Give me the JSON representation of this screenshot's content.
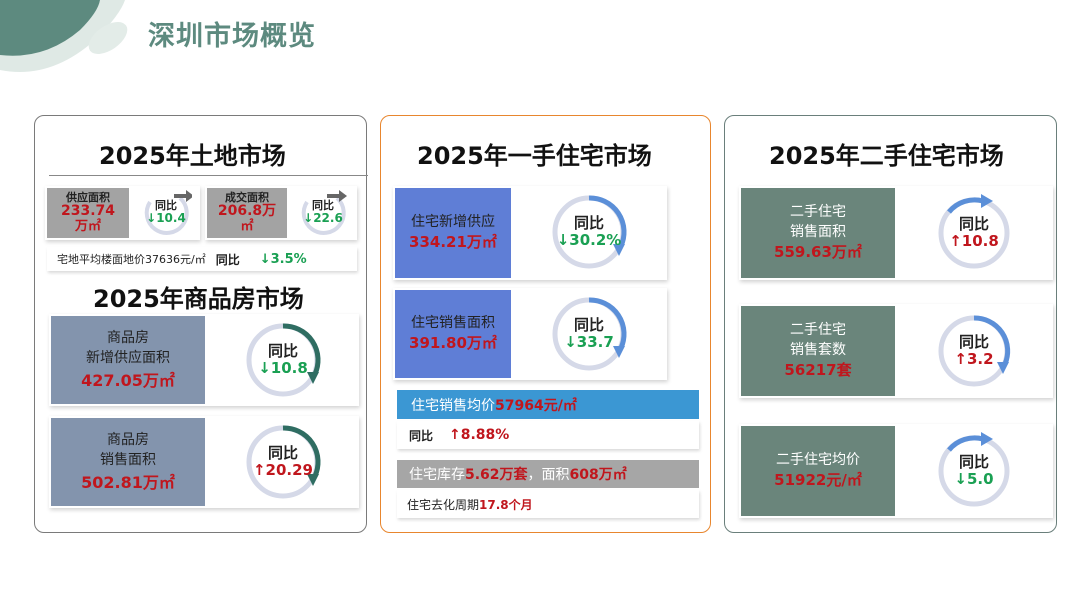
{
  "page": {
    "title": "深圳市场概览"
  },
  "colors": {
    "accent_green": "#5d8a7f",
    "red": "#c0161d",
    "green": "#1aa053",
    "blue_box": "#5f7ed6",
    "slate_box": "#8394ad",
    "teal_box": "#6a857b",
    "orange_border": "#e8862e"
  },
  "land": {
    "title": "2025年土地市场",
    "supply_label": "供应面积",
    "supply_value": "233.74",
    "supply_unit": "万㎡",
    "supply_yoy_label": "同比",
    "supply_yoy": "↓10.4",
    "deal_label": "成交面积",
    "deal_value": "206.8万",
    "deal_unit": "㎡",
    "deal_yoy_label": "同比",
    "deal_yoy": "↓22.6",
    "price_text": "宅地平均楼面地价37636元/㎡",
    "price_yoy_label": "同比",
    "price_yoy": "↓3.5%"
  },
  "commercial": {
    "title": "2025年商品房市场",
    "supply_line1": "商品房",
    "supply_line2": "新增供应面积",
    "supply_value": "427.05万㎡",
    "supply_yoy_label": "同比",
    "supply_yoy": "↓10.8",
    "sales_line1": "商品房",
    "sales_line2": "销售面积",
    "sales_value": "502.81万㎡",
    "sales_yoy_label": "同比",
    "sales_yoy": "↑20.29"
  },
  "primary": {
    "title": "2025年一手住宅市场",
    "supply_label": "住宅新增供应",
    "supply_value": "334.21万㎡",
    "supply_yoy_label": "同比",
    "supply_yoy": "↓30.2%",
    "sales_label": "住宅销售面积",
    "sales_value": "391.80万㎡",
    "sales_yoy_label": "同比",
    "sales_yoy": "↓33.7",
    "price_label": "住宅销售均价",
    "price_value": "57964元/㎡",
    "price_yoy_label": "同比",
    "price_yoy": "↑8.88%",
    "inventory_label": "住宅库存",
    "inventory_value": "5.62万套",
    "inventory_mid": "，面积",
    "inventory_area": "608万㎡",
    "cycle_label": "住宅去化周期",
    "cycle_value": "17.8个月"
  },
  "secondary": {
    "title": "2025年二手住宅市场",
    "area_line1": "二手住宅",
    "area_line2": "销售面积",
    "area_value": "559.63万㎡",
    "area_yoy_label": "同比",
    "area_yoy": "↑10.8",
    "count_line1": "二手住宅",
    "count_line2": "销售套数",
    "count_value": "56217套",
    "count_yoy_label": "同比",
    "count_yoy": "↑3.2",
    "price_label": "二手住宅均价",
    "price_value": "51922元/㎡",
    "price_yoy_label": "同比",
    "price_yoy": "↓5.0"
  }
}
